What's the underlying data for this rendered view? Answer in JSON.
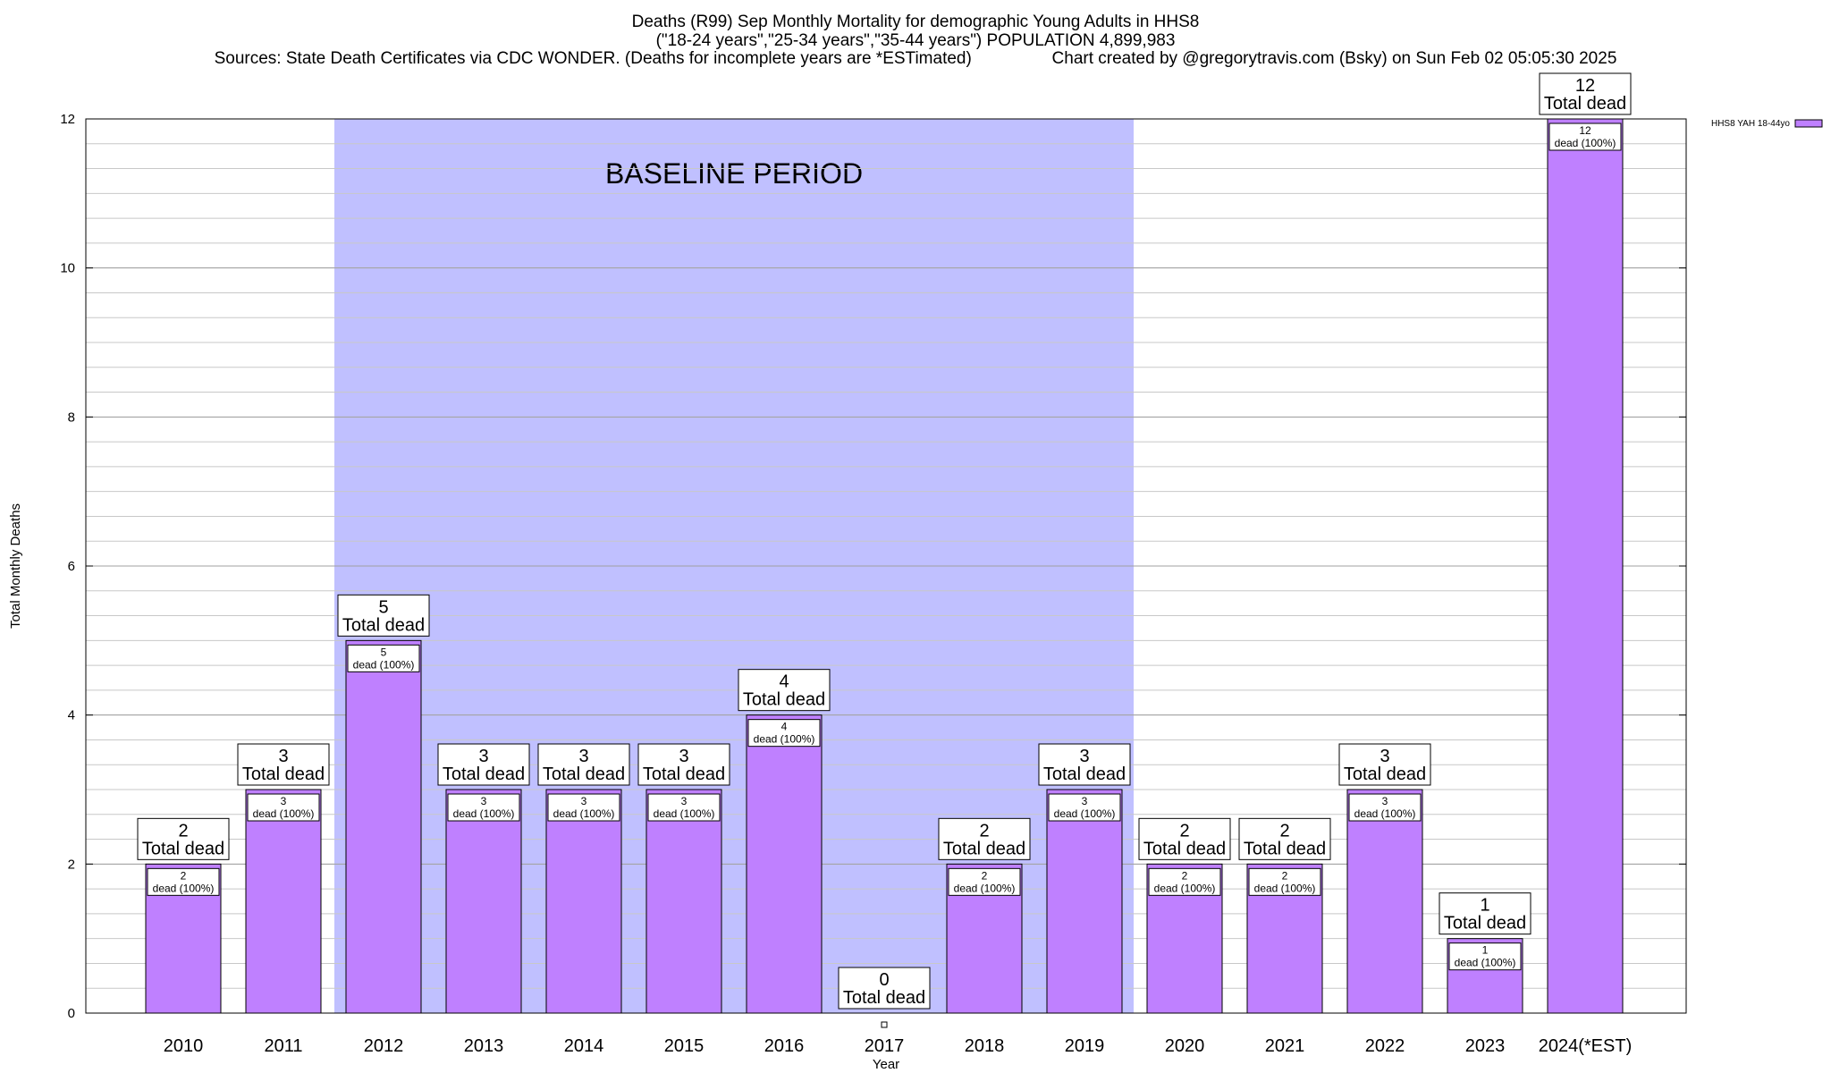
{
  "chart_data": {
    "type": "bar",
    "title_lines": [
      "Deaths (R99) Sep Monthly Mortality for demographic Young Adults in HHS8",
      "(\"18-24 years\",\"25-34 years\",\"35-44 years\") POPULATION 4,899,983",
      "Sources: State Death Certificates via CDC WONDER. (Deaths for incomplete years are *ESTimated)                 Chart created by @gregorytravis.com (Bsky) on Sun Feb 02 05:05:30 2025"
    ],
    "xlabel": "Year",
    "ylabel": "Total Monthly Deaths",
    "ylim": [
      0,
      12
    ],
    "y_ticks": [
      0,
      2,
      4,
      6,
      8,
      10,
      12
    ],
    "grid": true,
    "categories": [
      "2010",
      "2011",
      "2012",
      "2013",
      "2014",
      "2015",
      "2016",
      "2017",
      "2018",
      "2019",
      "2020",
      "2021",
      "2022",
      "2023",
      "2024(*EST)"
    ],
    "series": [
      {
        "name": "HHS8 YAH 18-44yo",
        "color": "#bf80ff",
        "values": [
          2,
          3,
          5,
          3,
          3,
          3,
          4,
          0,
          2,
          3,
          2,
          2,
          3,
          1,
          12
        ]
      }
    ],
    "baseline": {
      "label": "BASELINE PERIOD",
      "start": "2012",
      "end": "2019",
      "color": "#c0c0ff"
    },
    "total_label_text": "Total dead",
    "inner_label_text": "dead (100%)",
    "legend_position": "top-right"
  }
}
